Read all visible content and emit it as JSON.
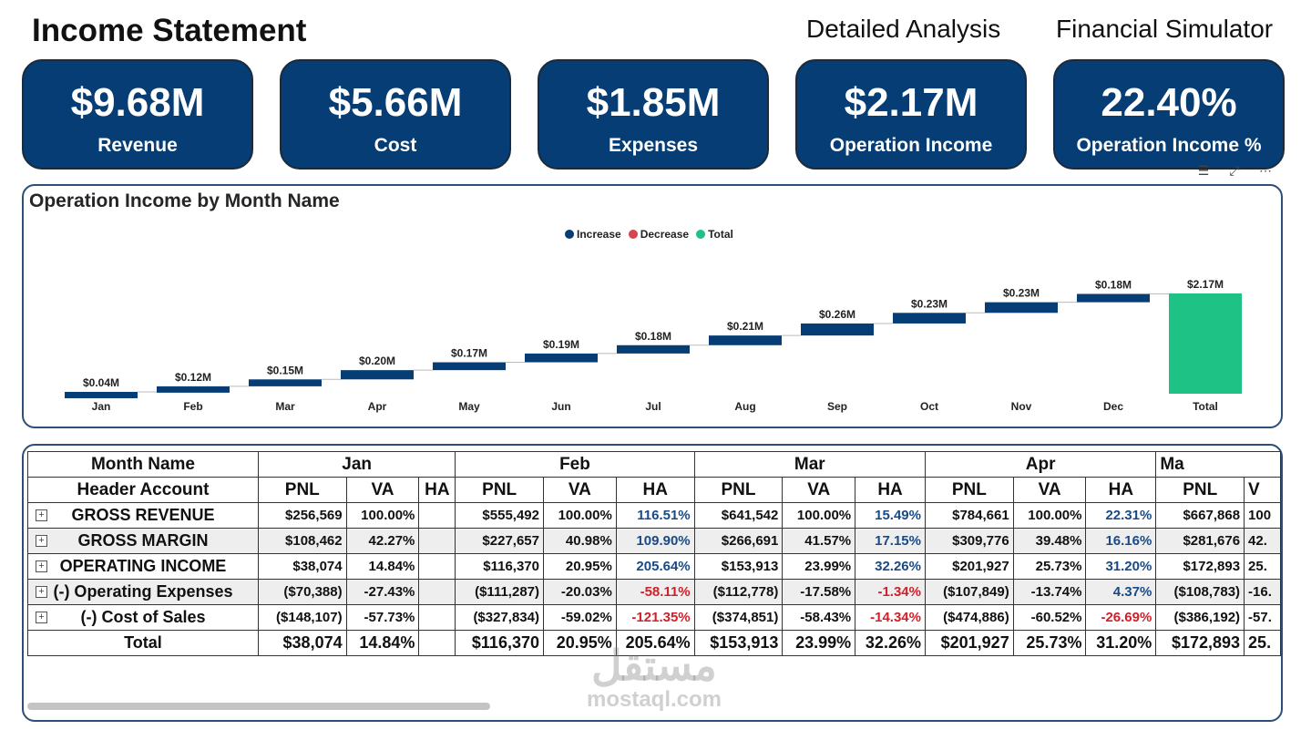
{
  "header": {
    "title": "Income Statement",
    "nav": [
      "Detailed Analysis",
      "Financial Simulator"
    ]
  },
  "kpis": [
    {
      "value": "$9.68M",
      "label": "Revenue"
    },
    {
      "value": "$5.66M",
      "label": "Cost"
    },
    {
      "value": "$1.85M",
      "label": "Expenses"
    },
    {
      "value": "$2.17M",
      "label": "Operation Income"
    },
    {
      "value": "22.40%",
      "label": "Operation Income %"
    }
  ],
  "colors": {
    "increase": "#063d74",
    "decrease": "#d64550",
    "total": "#1fc285",
    "card": "#063d74"
  },
  "chart": {
    "title": "Operation Income by Month Name",
    "legend": [
      "Increase",
      "Decrease",
      "Total"
    ]
  },
  "chart_data": {
    "type": "waterfall",
    "categories": [
      "Jan",
      "Feb",
      "Mar",
      "Apr",
      "May",
      "Jun",
      "Jul",
      "Aug",
      "Sep",
      "Oct",
      "Nov",
      "Dec",
      "Total"
    ],
    "values": [
      0.04,
      0.12,
      0.15,
      0.2,
      0.17,
      0.19,
      0.18,
      0.21,
      0.26,
      0.23,
      0.23,
      0.18,
      2.17
    ],
    "labels": [
      "$0.04M",
      "$0.12M",
      "$0.15M",
      "$0.20M",
      "$0.17M",
      "$0.19M",
      "$0.18M",
      "$0.21M",
      "$0.26M",
      "$0.23M",
      "$0.23M",
      "$0.18M",
      "$2.17M"
    ],
    "kinds": [
      "increase",
      "increase",
      "increase",
      "increase",
      "increase",
      "increase",
      "increase",
      "increase",
      "increase",
      "increase",
      "increase",
      "increase",
      "total"
    ],
    "unit": "M",
    "legend_position": "top-center",
    "grid": false
  },
  "table": {
    "corner_top": "Month Name",
    "corner_bottom": "Header Account",
    "months": [
      "Jan",
      "Feb",
      "Mar",
      "Apr",
      "Ma"
    ],
    "subcols": [
      "PNL",
      "VA",
      "HA"
    ],
    "last_subcols": [
      "PNL",
      "V"
    ],
    "rows": [
      {
        "label": "GROSS REVENUE",
        "expand": "+",
        "cells": [
          [
            "$256,569",
            "100.00%",
            ""
          ],
          [
            "$555,492",
            "100.00%",
            "116.51%"
          ],
          [
            "$641,542",
            "100.00%",
            "15.49%"
          ],
          [
            "$784,661",
            "100.00%",
            "22.31%"
          ],
          [
            "$667,868",
            "100"
          ]
        ]
      },
      {
        "label": "GROSS MARGIN",
        "expand": "+",
        "cells": [
          [
            "$108,462",
            "42.27%",
            ""
          ],
          [
            "$227,657",
            "40.98%",
            "109.90%"
          ],
          [
            "$266,691",
            "41.57%",
            "17.15%"
          ],
          [
            "$309,776",
            "39.48%",
            "16.16%"
          ],
          [
            "$281,676",
            "42."
          ]
        ]
      },
      {
        "label": "OPERATING INCOME",
        "expand": "+",
        "cells": [
          [
            "$38,074",
            "14.84%",
            ""
          ],
          [
            "$116,370",
            "20.95%",
            "205.64%"
          ],
          [
            "$153,913",
            "23.99%",
            "32.26%"
          ],
          [
            "$201,927",
            "25.73%",
            "31.20%"
          ],
          [
            "$172,893",
            "25."
          ]
        ]
      },
      {
        "label": "(-) Operating Expenses",
        "expand": "+",
        "cells": [
          [
            "($70,388)",
            "-27.43%",
            ""
          ],
          [
            "($111,287)",
            "-20.03%",
            "-58.11%"
          ],
          [
            "($112,778)",
            "-17.58%",
            "-1.34%"
          ],
          [
            "($107,849)",
            "-13.74%",
            "4.37%"
          ],
          [
            "($108,783)",
            "-16."
          ]
        ]
      },
      {
        "label": "(-) Cost of Sales",
        "expand": "+",
        "cells": [
          [
            "($148,107)",
            "-57.73%",
            ""
          ],
          [
            "($327,834)",
            "-59.02%",
            "-121.35%"
          ],
          [
            "($374,851)",
            "-58.43%",
            "-14.34%"
          ],
          [
            "($474,886)",
            "-60.52%",
            "-26.69%"
          ],
          [
            "($386,192)",
            "-57."
          ]
        ]
      },
      {
        "label": "Total",
        "expand": "",
        "cells": [
          [
            "$38,074",
            "14.84%",
            ""
          ],
          [
            "$116,370",
            "20.95%",
            "205.64%"
          ],
          [
            "$153,913",
            "23.99%",
            "32.26%"
          ],
          [
            "$201,927",
            "25.73%",
            "31.20%"
          ],
          [
            "$172,893",
            "25."
          ]
        ]
      }
    ]
  },
  "watermark": {
    "line1": "مستقل",
    "line2": "mostaql.com"
  }
}
